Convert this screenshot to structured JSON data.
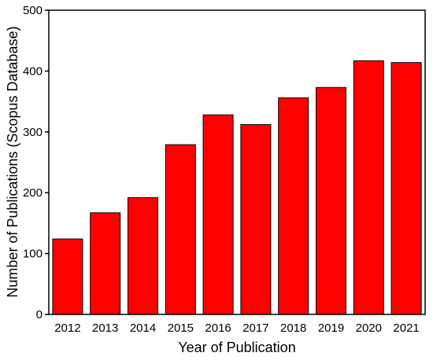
{
  "chart_data": {
    "type": "bar",
    "title": "",
    "xlabel": "Year of Publication",
    "ylabel": "Number of Publications (Scopus Database)",
    "categories": [
      "2012",
      "2013",
      "2014",
      "2015",
      "2016",
      "2017",
      "2018",
      "2019",
      "2020",
      "2021"
    ],
    "values": [
      124,
      167,
      192,
      279,
      328,
      312,
      356,
      373,
      417,
      414
    ],
    "ylim": [
      0,
      500
    ],
    "yticks": [
      0,
      100,
      200,
      300,
      400,
      500
    ],
    "grid": false,
    "legend": "none",
    "bar_color": "#ff0000",
    "bar_edge_color": "#000000"
  }
}
